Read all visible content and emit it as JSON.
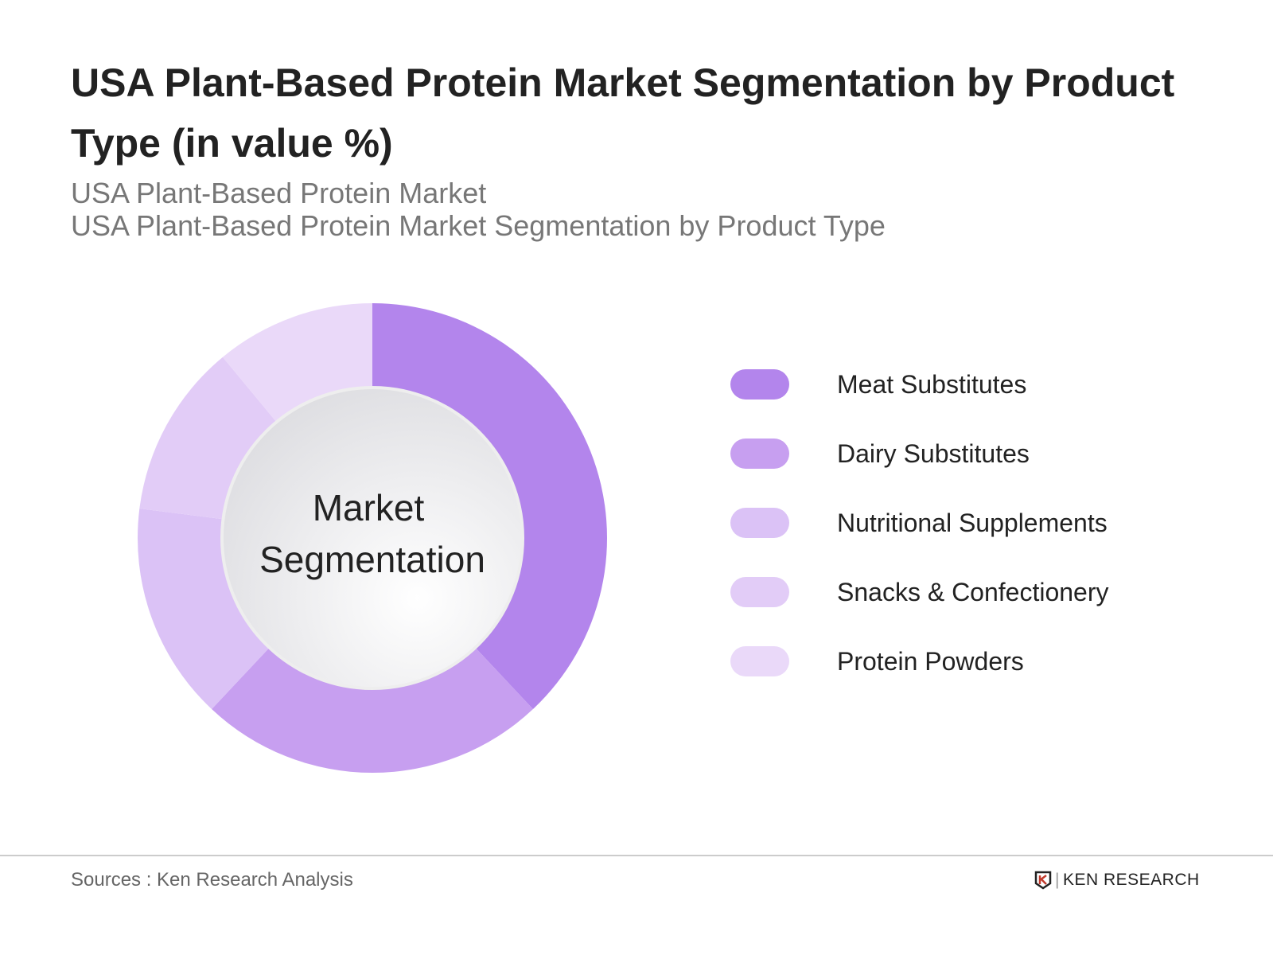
{
  "header": {
    "title": "USA Plant-Based Protein Market Segmentation by Product Type (in value %)",
    "subtitle1": "USA Plant-Based Protein Market",
    "subtitle2": "USA Plant-Based Protein Market Segmentation by Product Type"
  },
  "chart_data": {
    "type": "pie",
    "variant": "donut",
    "center_label_line1": "Market",
    "center_label_line2": "Segmentation",
    "categories": [
      "Meat Substitutes",
      "Dairy Substitutes",
      "Nutritional Supplements",
      "Snacks & Confectionery",
      "Protein Powders"
    ],
    "values": [
      38,
      24,
      15,
      12,
      11
    ],
    "colors": [
      "#b385ec",
      "#c79ff0",
      "#dbc2f6",
      "#e2ccf7",
      "#ead9f9"
    ],
    "legend_position": "right"
  },
  "footer": {
    "source": "Sources : Ken Research Analysis",
    "logo_text": "KEN RESEARCH"
  }
}
